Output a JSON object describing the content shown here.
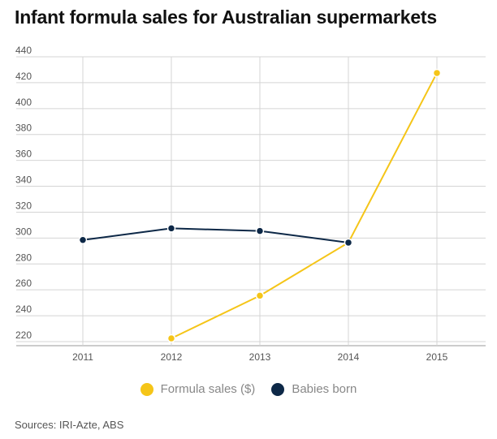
{
  "title": "Infant formula sales for Australian supermarkets",
  "source": "Sources: IRI-Azte, ABS",
  "chart_data": {
    "type": "line",
    "title": "Infant formula sales for Australian supermarkets",
    "x": [
      "2011",
      "2012",
      "2013",
      "2014",
      "2015"
    ],
    "yticks": [
      "220",
      "240",
      "260",
      "280",
      "300",
      "320",
      "340",
      "360",
      "380",
      "400",
      "420",
      "440"
    ],
    "ylim": [
      220,
      440
    ],
    "grid": true,
    "legend_position": "bottom-center",
    "series": [
      {
        "name": "Formula sales ($)",
        "color": "#f5c518",
        "values": [
          null,
          225,
          258,
          299,
          430
        ]
      },
      {
        "name": "Babies born",
        "color": "#0d2847",
        "values": [
          301,
          310,
          308,
          299,
          null
        ]
      }
    ]
  }
}
